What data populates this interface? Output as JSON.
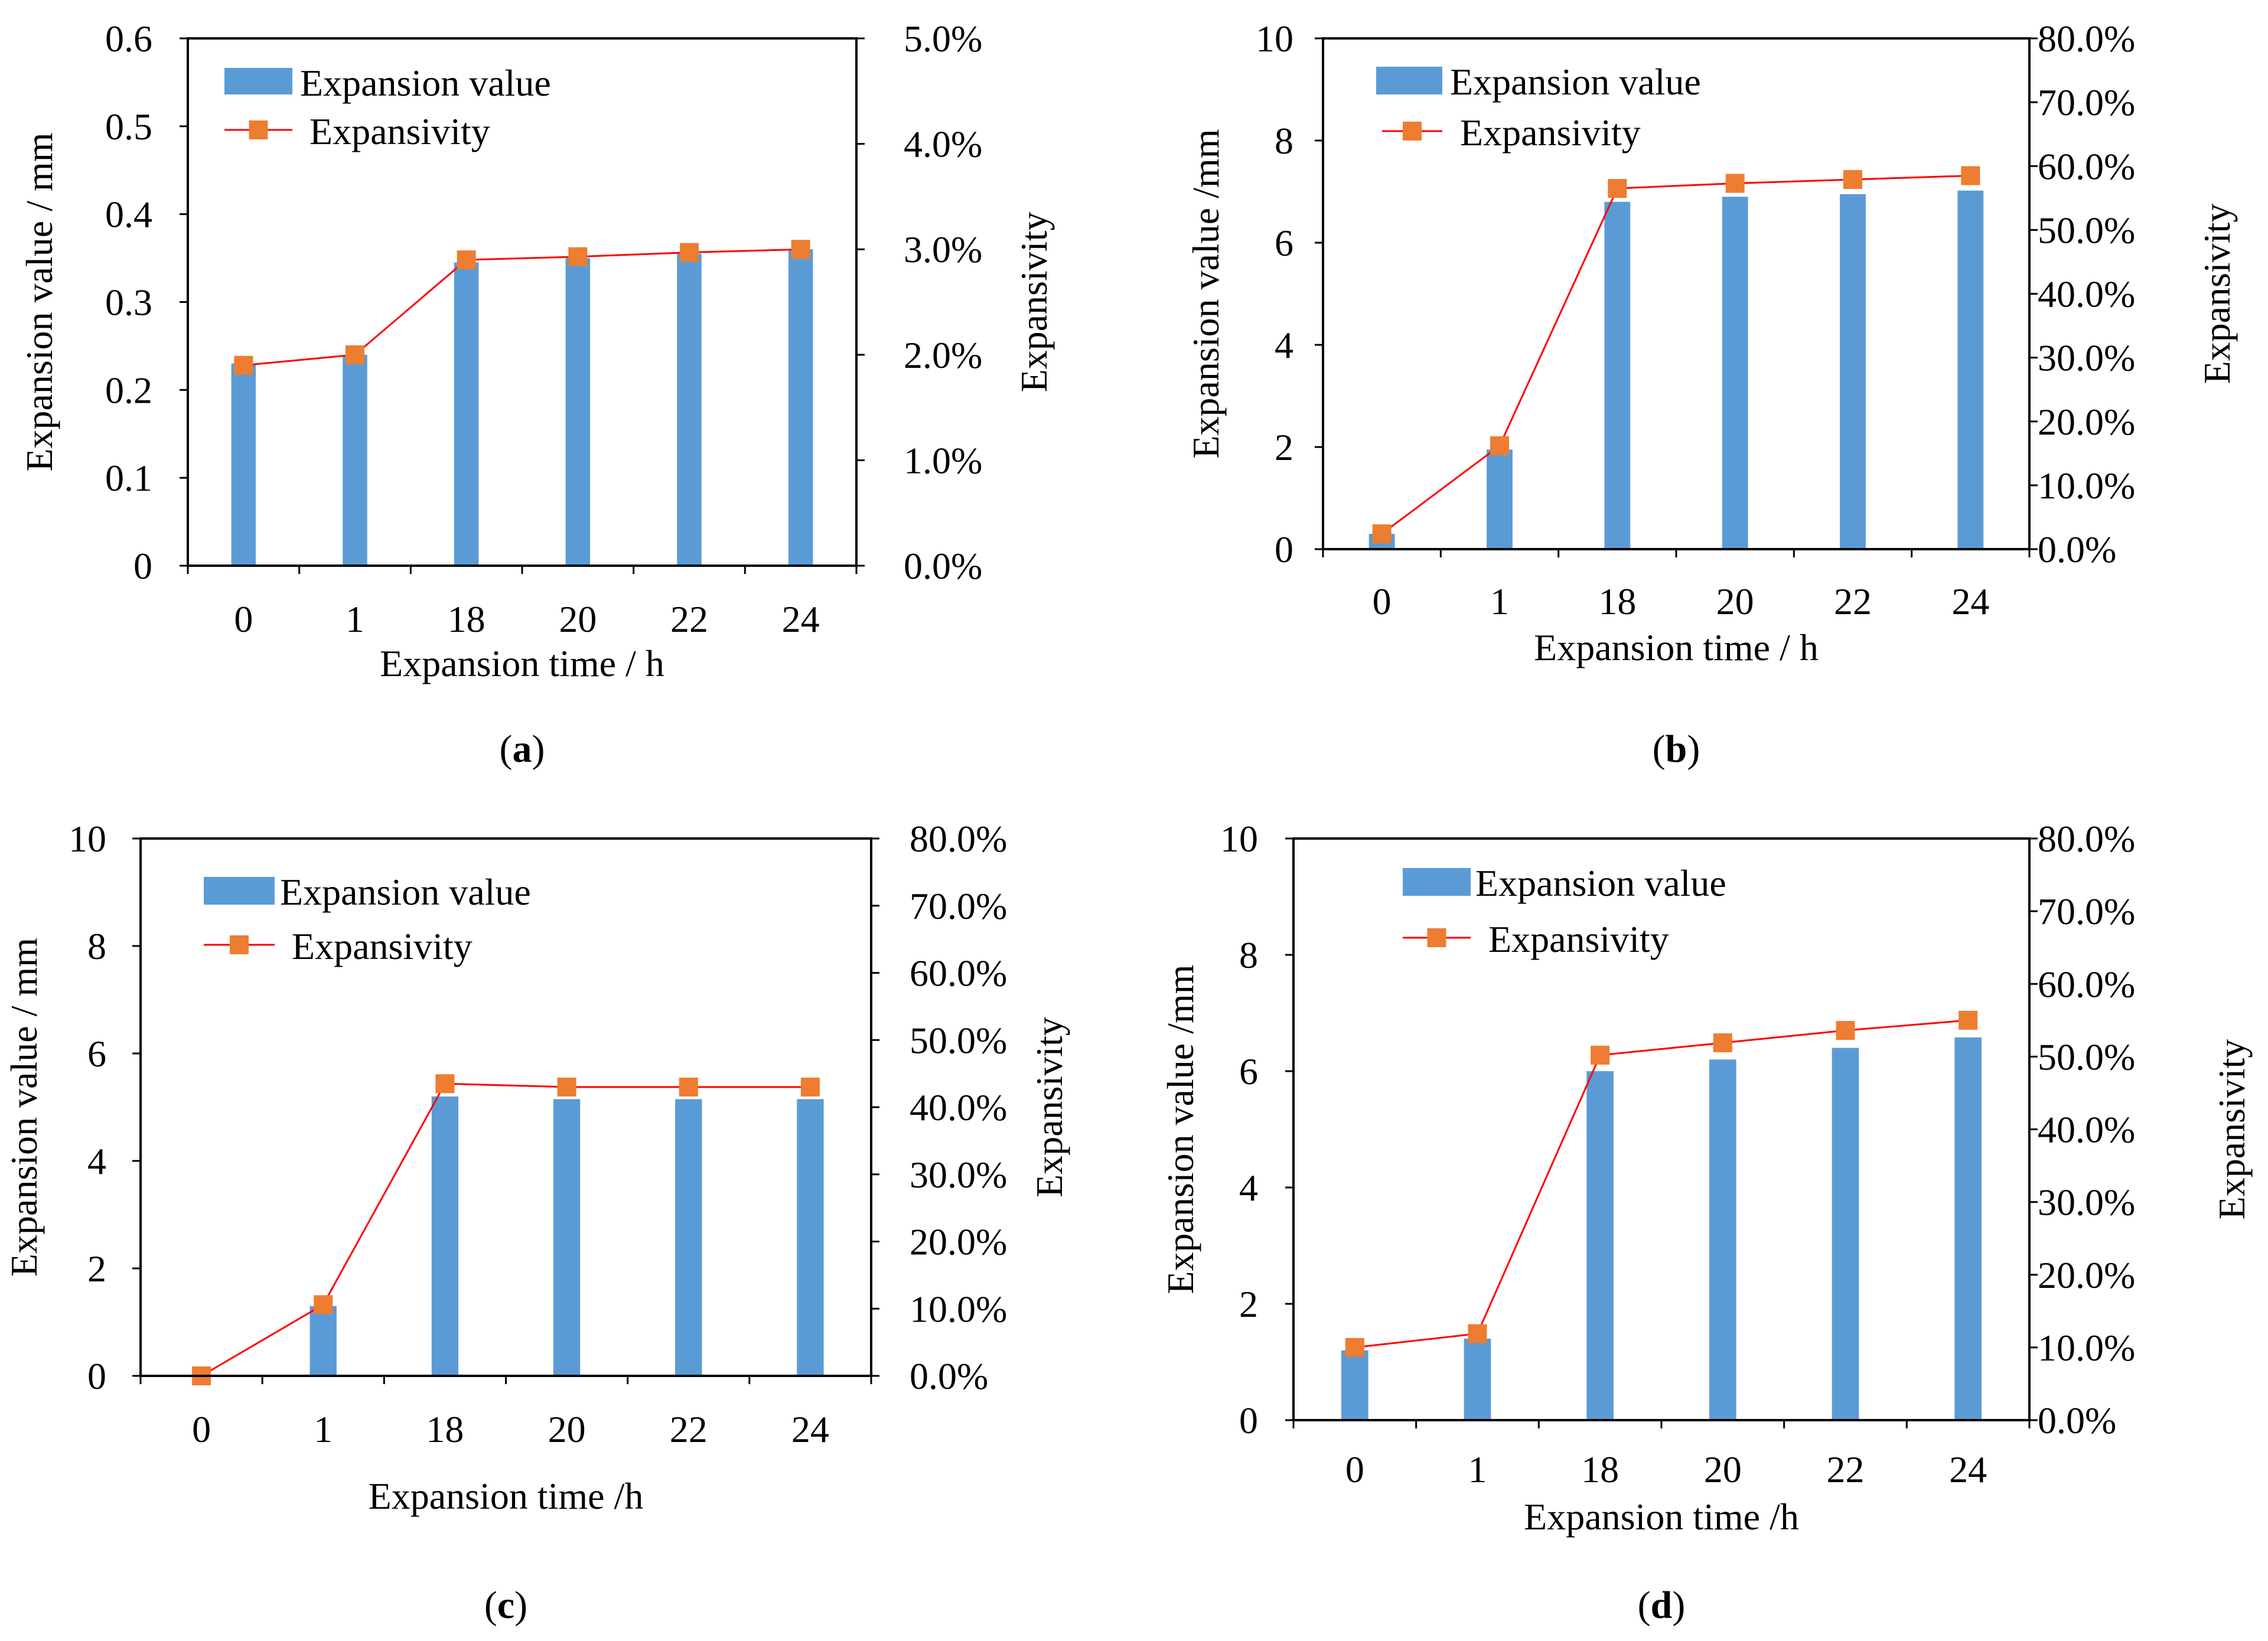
{
  "colors": {
    "bar": "#5B9BD5",
    "line": "#FF0000",
    "marker": "#ED7D31",
    "axis": "#000000"
  },
  "chart_data": [
    {
      "panel": "a",
      "type": "bar+line",
      "categories": [
        "0",
        "1",
        "18",
        "20",
        "22",
        "24"
      ],
      "series": [
        {
          "name": "Expansion value",
          "type": "bar",
          "axis": "left",
          "values": [
            0.23,
            0.24,
            0.345,
            0.35,
            0.355,
            0.36
          ]
        },
        {
          "name": "Expansivity",
          "type": "line",
          "axis": "right",
          "values": [
            0.019,
            0.02,
            0.029,
            0.0293,
            0.0297,
            0.03
          ]
        }
      ],
      "xlabel": "Expansion time / h",
      "ylabel": "Expansion value / mm",
      "y2label": "Expansivity",
      "ylim": [
        0,
        0.6
      ],
      "y2lim": [
        0,
        0.05
      ],
      "yticks": [
        "0",
        "0.1",
        "0.2",
        "0.3",
        "0.4",
        "0.5",
        "0.6"
      ],
      "y2ticks": [
        "0.0%",
        "1.0%",
        "2.0%",
        "3.0%",
        "4.0%",
        "5.0%"
      ],
      "legend": [
        "Expansion value",
        "Expansivity"
      ],
      "legend_position": "top-left",
      "label_prefix": "(",
      "label_letter": "a",
      "label_suffix": ")"
    },
    {
      "panel": "b",
      "type": "bar+line",
      "categories": [
        "0",
        "1",
        "18",
        "20",
        "22",
        "24"
      ],
      "series": [
        {
          "name": "Expansion value",
          "type": "bar",
          "axis": "left",
          "values": [
            0.3,
            1.95,
            6.8,
            6.9,
            6.95,
            7.02
          ]
        },
        {
          "name": "Expansivity",
          "type": "line",
          "axis": "right",
          "values": [
            0.024,
            0.162,
            0.565,
            0.573,
            0.579,
            0.585
          ]
        }
      ],
      "xlabel": "Expansion time / h",
      "ylabel": "Expansion value /mm",
      "y2label": "Expansivity",
      "ylim": [
        0,
        10
      ],
      "y2lim": [
        0,
        0.8
      ],
      "yticks": [
        "0",
        "2",
        "4",
        "6",
        "8",
        "10"
      ],
      "y2ticks": [
        "0.0%",
        "10.0%",
        "20.0%",
        "30.0%",
        "40.0%",
        "50.0%",
        "60.0%",
        "70.0%",
        "80.0%"
      ],
      "legend": [
        "Expansion value",
        "Expansivity"
      ],
      "legend_position": "top-left",
      "label_prefix": "(",
      "label_letter": "b",
      "label_suffix": ")"
    },
    {
      "panel": "c",
      "type": "bar+line",
      "categories": [
        "0",
        "1",
        "18",
        "20",
        "22",
        "24"
      ],
      "series": [
        {
          "name": "Expansion value",
          "type": "bar",
          "axis": "left",
          "values": [
            0.0,
            1.3,
            5.2,
            5.15,
            5.15,
            5.15
          ]
        },
        {
          "name": "Expansivity",
          "type": "line",
          "axis": "right",
          "values": [
            0.0,
            0.106,
            0.435,
            0.43,
            0.43,
            0.43
          ]
        }
      ],
      "xlabel": "Expansion time /h",
      "ylabel": "Expansion value / mm",
      "y2label": "Expansivity",
      "ylim": [
        0,
        10
      ],
      "y2lim": [
        0,
        0.8
      ],
      "yticks": [
        "0",
        "2",
        "4",
        "6",
        "8",
        "10"
      ],
      "y2ticks": [
        "0.0%",
        "10.0%",
        "20.0%",
        "30.0%",
        "40.0%",
        "50.0%",
        "60.0%",
        "70.0%",
        "80.0%"
      ],
      "legend": [
        "Expansion value",
        "Expansivity"
      ],
      "legend_position": "top-left",
      "label_prefix": "(",
      "label_letter": "c",
      "label_suffix": ")"
    },
    {
      "panel": "d",
      "type": "bar+line",
      "categories": [
        "0",
        "1",
        "18",
        "20",
        "22",
        "24"
      ],
      "series": [
        {
          "name": "Expansion value",
          "type": "bar",
          "axis": "left",
          "values": [
            1.2,
            1.4,
            6.0,
            6.2,
            6.4,
            6.58
          ]
        },
        {
          "name": "Expansivity",
          "type": "line",
          "axis": "right",
          "values": [
            0.1,
            0.119,
            0.502,
            0.519,
            0.536,
            0.55
          ]
        }
      ],
      "xlabel": "Expansion time /h",
      "ylabel": "Expansion value /mm",
      "y2label": "Expansivity",
      "ylim": [
        0,
        10
      ],
      "y2lim": [
        0,
        0.8
      ],
      "yticks": [
        "0",
        "2",
        "4",
        "6",
        "8",
        "10"
      ],
      "y2ticks": [
        "0.0%",
        "10.0%",
        "20.0%",
        "30.0%",
        "40.0%",
        "50.0%",
        "60.0%",
        "70.0%",
        "80.0%"
      ],
      "legend": [
        "Expansion value",
        "Expansivity"
      ],
      "legend_position": "top-left",
      "label_prefix": "(",
      "label_letter": "d",
      "label_suffix": ")"
    }
  ]
}
